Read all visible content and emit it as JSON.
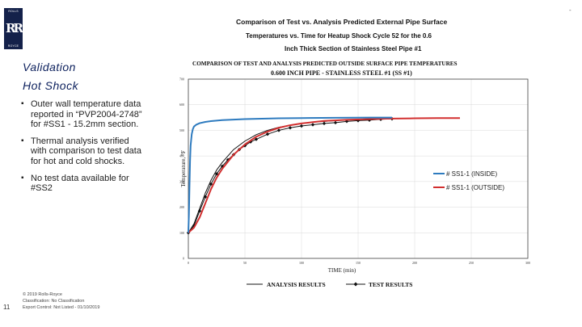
{
  "logo": {
    "top_text": "ROLLS",
    "mono": "RR",
    "bottom_text": "ROYCE"
  },
  "heading": {
    "line1": "Validation",
    "line2": "Hot Shock"
  },
  "bullets": [
    "Outer wall temperature data reported in “PVP2004-2748” for #SS1 - 15.2mm section.",
    "Thermal analysis verified with comparison to test data for hot and cold shocks.",
    "No test data available for #SS2"
  ],
  "footer": {
    "page_number": "11",
    "copyright": "© 2019 Rolls-Royce",
    "classification": "Classification: No Classification",
    "export": "Export Control: Not Listed - 01/10/2019"
  },
  "corner_mark": "-",
  "chart_data": {
    "type": "line",
    "title_lines": [
      "Comparison of Test vs. Analysis Predicted External Pipe Surface",
      "Temperatures vs. Time for Heatup Shock Cycle 52 for the 0.6",
      "Inch Thick Section of Stainless Steel Pipe #1"
    ],
    "inner_title_lines": [
      "COMPARISON OF TEST AND ANALYSIS PREDICTED OUTSIDE SURFACE PIPE TEMPERATURES",
      "0.600 INCH PIPE - STAINLESS STEEL #1 (SS #1)"
    ],
    "xlabel": "TIME (min)",
    "ylabel": "Temperature, °F",
    "xlim": [
      0,
      300
    ],
    "ylim": [
      0,
      700
    ],
    "xticks": [
      0,
      50,
      100,
      150,
      200,
      250,
      300
    ],
    "yticks": [
      0,
      100,
      200,
      300,
      400,
      500,
      600,
      700
    ],
    "series": [
      {
        "name": "# SS1-1 (INSIDE)",
        "color": "#2e7bbf",
        "x": [
          0,
          0.5,
          1,
          1.5,
          2,
          3,
          4,
          5,
          7,
          10,
          15,
          20,
          30,
          50,
          80,
          100,
          130,
          160,
          180
        ],
        "y": [
          100,
          170,
          280,
          380,
          440,
          485,
          505,
          515,
          522,
          528,
          533,
          536,
          540,
          544,
          547,
          548,
          549,
          550,
          550
        ]
      },
      {
        "name": "# SS1-1 (OUTSIDE)",
        "color": "#d22f2f",
        "x": [
          0,
          5,
          10,
          15,
          20,
          25,
          30,
          40,
          50,
          60,
          70,
          80,
          90,
          100,
          110,
          120,
          140,
          160,
          180,
          200,
          220,
          240
        ],
        "y": [
          100,
          120,
          160,
          215,
          270,
          315,
          350,
          405,
          445,
          475,
          495,
          510,
          520,
          527,
          532,
          537,
          541,
          544,
          546,
          547,
          548,
          548
        ]
      },
      {
        "name": "ANALYSIS RESULTS",
        "color": "#111111",
        "x": [
          0,
          5,
          10,
          15,
          20,
          25,
          30,
          40,
          50,
          60,
          70,
          80,
          90,
          100,
          110,
          120,
          140,
          160,
          180
        ],
        "y": [
          100,
          135,
          195,
          255,
          305,
          345,
          375,
          425,
          458,
          483,
          500,
          512,
          520,
          527,
          532,
          535,
          541,
          545,
          548
        ]
      },
      {
        "name": "TEST RESULTS",
        "color": "#111111",
        "x": [
          0,
          5,
          10,
          15,
          20,
          25,
          30,
          35,
          40,
          45,
          50,
          55,
          60,
          70,
          80,
          90,
          100,
          110,
          120,
          130,
          140,
          150,
          160,
          170,
          180
        ],
        "y": [
          100,
          128,
          185,
          240,
          290,
          330,
          360,
          385,
          405,
          425,
          440,
          455,
          465,
          485,
          500,
          510,
          517,
          522,
          527,
          530,
          535,
          538,
          540,
          543,
          545
        ]
      }
    ],
    "legend_inset": [
      "# SS1-1 (INSIDE)",
      "# SS1-1 (OUTSIDE)"
    ],
    "legend_bottom": [
      "ANALYSIS RESULTS",
      "TEST RESULTS"
    ]
  }
}
